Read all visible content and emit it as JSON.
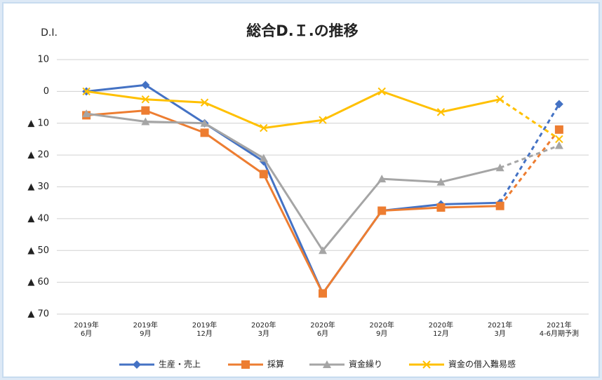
{
  "chart_data": {
    "type": "line",
    "title": "総合D.Ｉ.の推移",
    "y_label": "D.I.",
    "categories": [
      [
        "2019年",
        "6月"
      ],
      [
        "2019年",
        "9月"
      ],
      [
        "2019年",
        "12月"
      ],
      [
        "2020年",
        "3月"
      ],
      [
        "2020年",
        "6月"
      ],
      [
        "2020年",
        "9月"
      ],
      [
        "2020年",
        "12月"
      ],
      [
        "2021年",
        "3月"
      ],
      [
        "2021年",
        "4-6月期予測"
      ]
    ],
    "series": [
      {
        "name": "生産・売上",
        "color": "#4472c4",
        "marker": "diamond",
        "values": [
          0,
          2,
          -10,
          -22,
          -63.5,
          -37.5,
          -35.5,
          -35,
          -4
        ]
      },
      {
        "name": "採算",
        "color": "#ed7d31",
        "marker": "square",
        "values": [
          -7.5,
          -6,
          -13,
          -26,
          -63.5,
          -37.5,
          -36.5,
          -36,
          -12
        ]
      },
      {
        "name": "資金繰り",
        "color": "#a5a5a5",
        "marker": "triangle",
        "values": [
          -7,
          -9.5,
          -10,
          -21,
          -50,
          -27.5,
          -28.5,
          -24,
          -17
        ]
      },
      {
        "name": "資金の借入難易感",
        "color": "#ffc000",
        "marker": "x",
        "values": [
          0,
          -2.5,
          -3.5,
          -11.5,
          -9,
          0,
          -6.5,
          -2.5,
          -15
        ]
      }
    ],
    "ylim": [
      -70,
      10
    ],
    "yticks": [
      10,
      0,
      {
        "value": -10,
        "label": "▲ 10"
      },
      {
        "value": -20,
        "label": "▲ 20"
      },
      {
        "value": -30,
        "label": "▲ 30"
      },
      {
        "value": -40,
        "label": "▲ 40"
      },
      {
        "value": -50,
        "label": "▲ 50"
      },
      {
        "value": -60,
        "label": "▲ 60"
      },
      {
        "value": -70,
        "label": "▲ 70"
      }
    ],
    "grid": true,
    "dashed_last_segment": true,
    "legend": "bottom"
  }
}
